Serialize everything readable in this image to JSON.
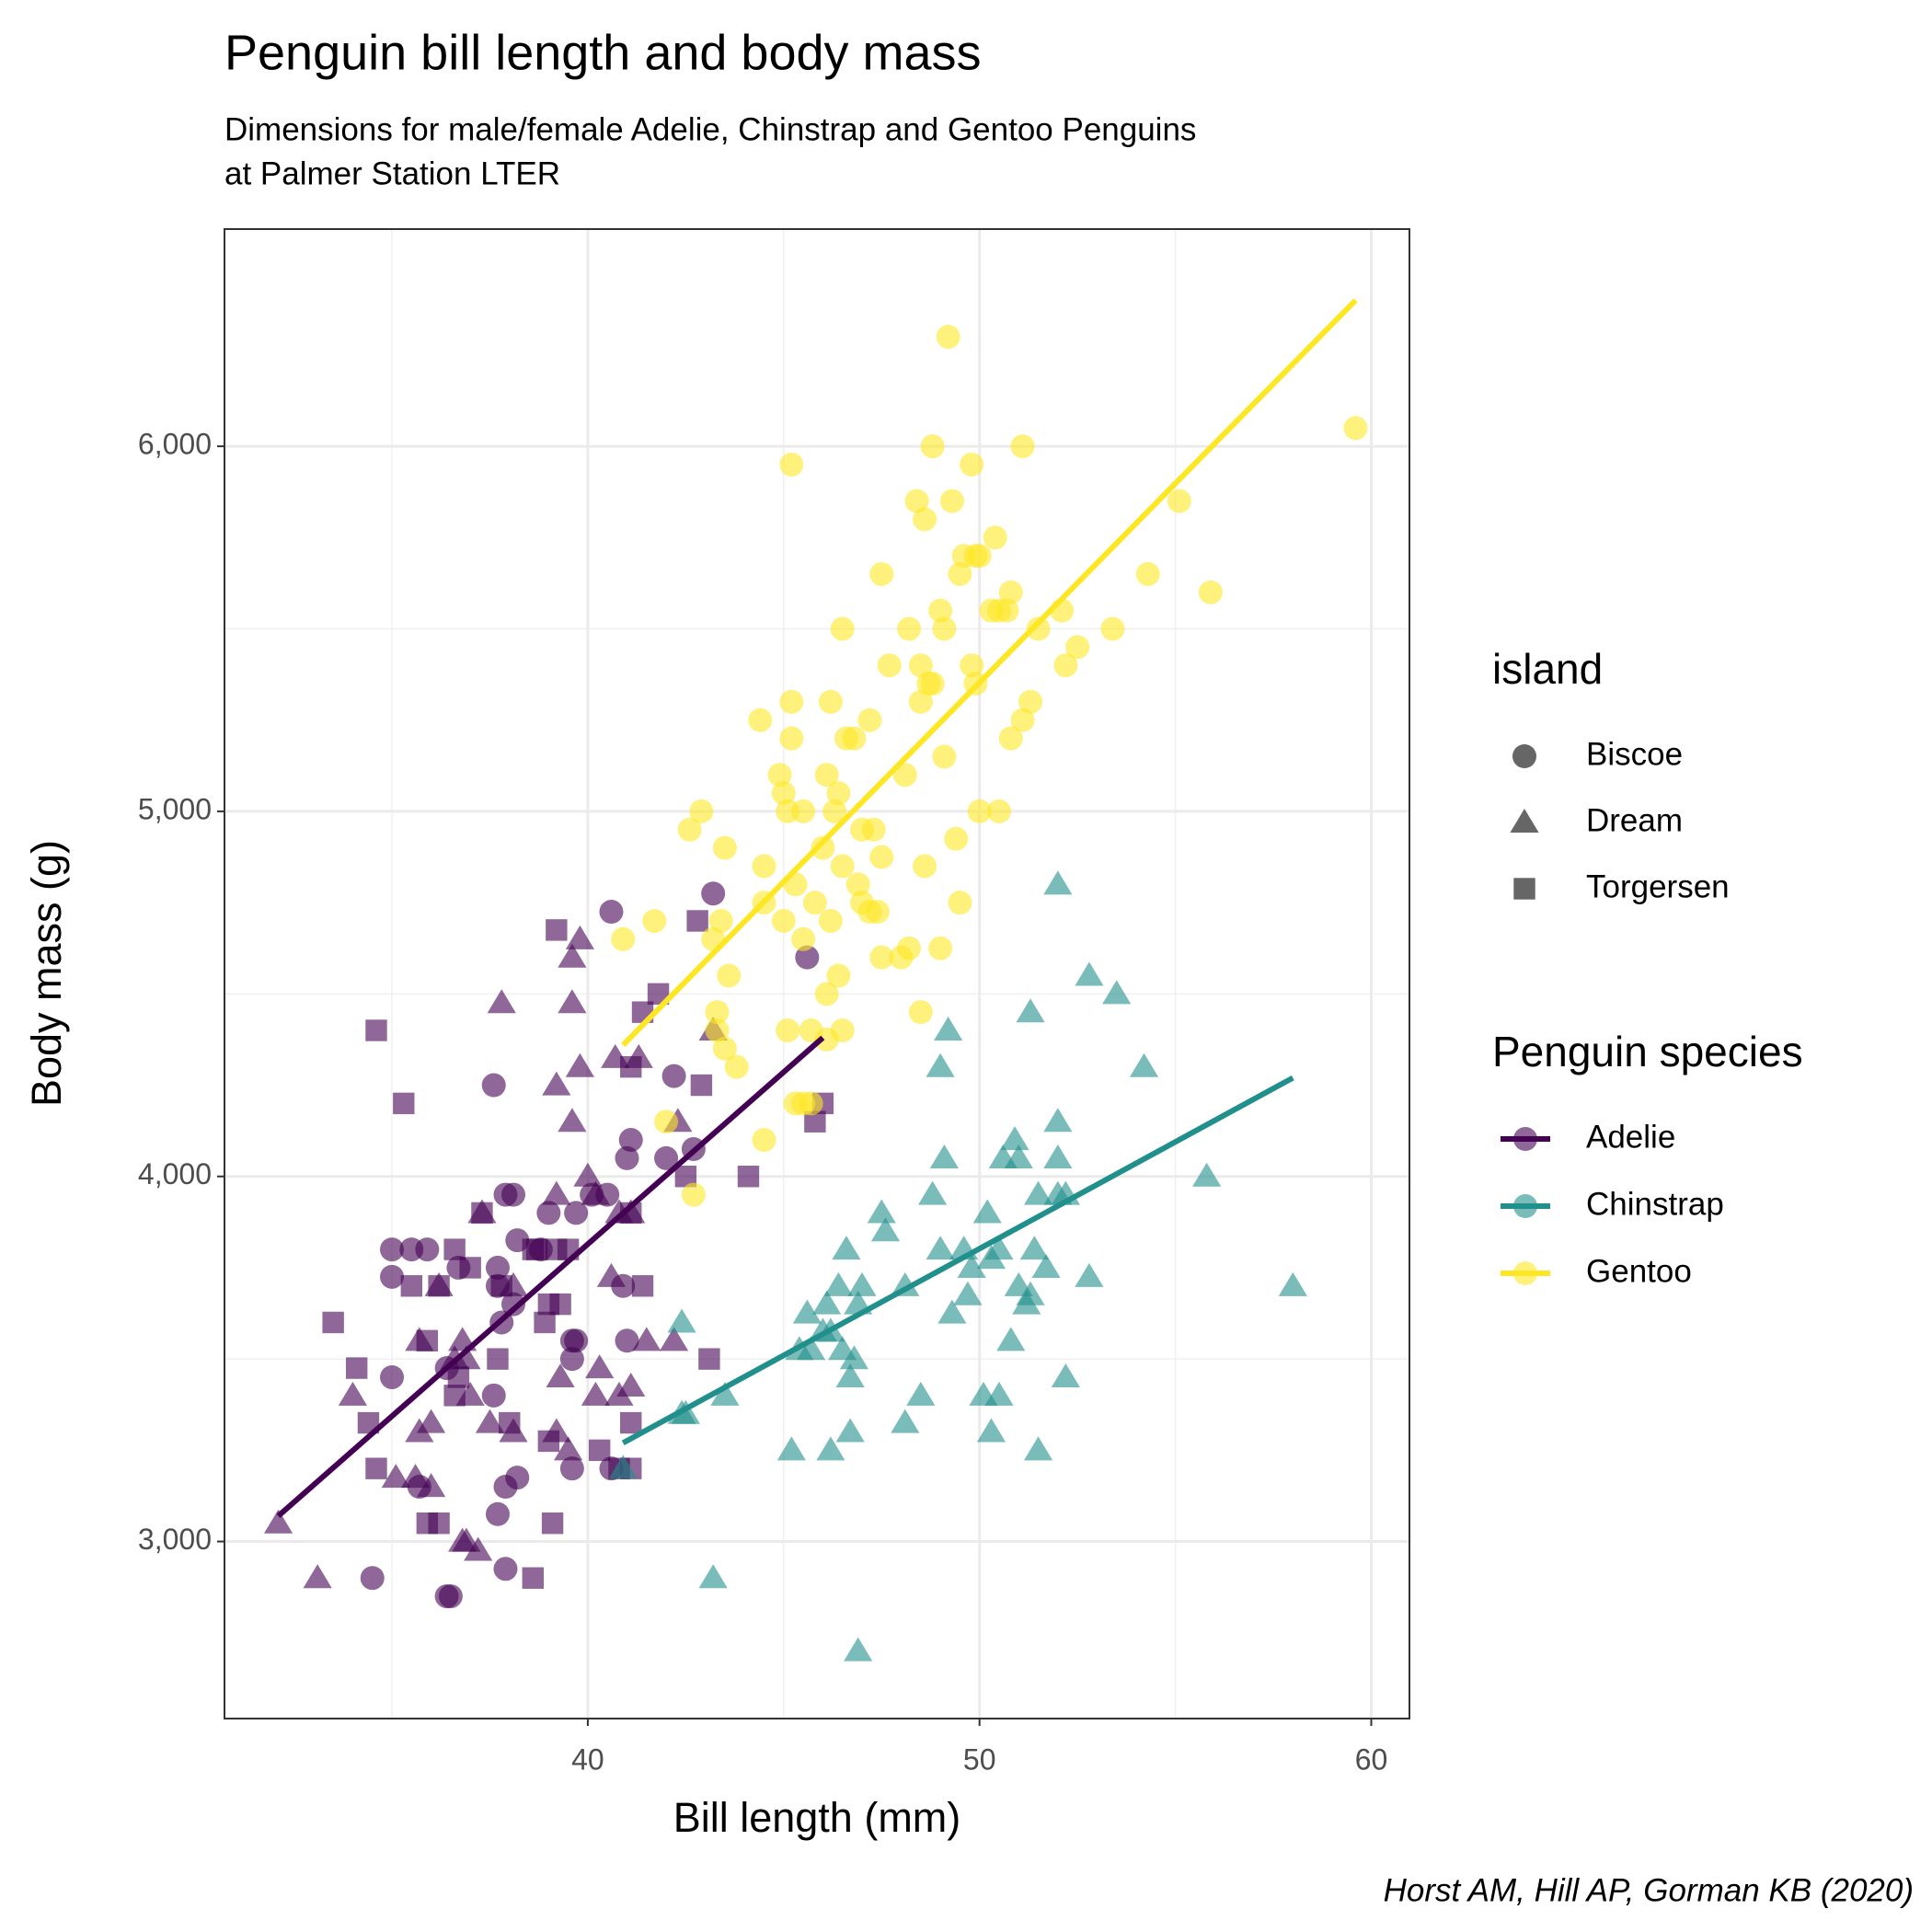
{
  "chart_data": {
    "type": "scatter",
    "title": "Penguin bill length and body mass",
    "subtitle": [
      "Dimensions for male/female Adelie, Chinstrap and Gentoo Penguins",
      "at Palmer Station LTER"
    ],
    "caption": "Horst AM, Hill AP, Gorman KB (2020)",
    "x_label": "Bill length (mm)",
    "y_label": "Body mass (g)",
    "xlim": [
      30.725,
      60.975
    ],
    "xticks": [
      40,
      50,
      60
    ],
    "xminor": [
      35,
      45,
      55
    ],
    "ylim": [
      2515,
      6595
    ],
    "yticks": [
      {
        "value": 3000,
        "label": "3,000"
      },
      {
        "value": 4000,
        "label": "4,000"
      },
      {
        "value": 5000,
        "label": "5,000"
      },
      {
        "value": 6000,
        "label": "6,000"
      }
    ],
    "yminor": [
      3500,
      4500,
      5500
    ],
    "grid": true,
    "shape_legend": {
      "title": "island",
      "items": [
        "Biscoe",
        "Dream",
        "Torgersen"
      ]
    },
    "color_legend_title": "Penguin species",
    "series": [
      {
        "name": "Adelie",
        "color": "#440154",
        "trend_x": [
          32.1,
          46.0
        ],
        "trend_y": [
          3070,
          4380
        ],
        "groups": [
          {
            "island": "Biscoe",
            "x": [
              40.6,
              43.2,
              45.6,
              37.6,
              42.2,
              41.1,
              41.0,
              42.0,
              42.7,
              39.7,
              39.0,
              37.9,
              38.1,
              40.5,
              40.1,
              35.0,
              35.5,
              35.9,
              38.2,
              36.7,
              37.7,
              38.8,
              35.0,
              37.7,
              39.6,
              39.7,
              41.0,
              37.8,
              38.1,
              36.4,
              35.0,
              39.6,
              37.6,
              35.7,
              39.6,
              40.6,
              38.2,
              37.9,
              37.7,
              37.9,
              36.5,
              36.4,
              34.5,
              40.9
            ],
            "values": [
              4725,
              4775,
              4600,
              4250,
              4275,
              4100,
              4050,
              4050,
              4075,
              3900,
              3900,
              3950,
              3950,
              3950,
              3950,
              3800,
              3800,
              3800,
              3825,
              3750,
              3750,
              3800,
              3725,
              3700,
              3550,
              3550,
              3550,
              3600,
              3650,
              3475,
              3450,
              3500,
              3400,
              3150,
              3200,
              3200,
              3175,
              3150,
              3075,
              2925,
              2850,
              2850,
              2900,
              3700
            ]
          },
          {
            "island": "Dream",
            "x": [
              32.1,
              33.1,
              36.8,
              37.2,
              36.9,
              34.0,
              35.7,
              36.0,
              35.6,
              36.0,
              35.1,
              37.5,
              38.1,
              39.2,
              39.5,
              40.2,
              40.8,
              41.1,
              41.5,
              42.2,
              40.3,
              37.0,
              36.6,
              36.8,
              35.7,
              36.2,
              37.3,
              39.2,
              40.8,
              41.1,
              40.2,
              40.0,
              39.8,
              40.7,
              41.3,
              39.6,
              39.6,
              39.8,
              37.8,
              43.2,
              39.2,
              39.6,
              42.3,
              36.9,
              39.3,
              38.1,
              40.6
            ],
            "values": [
              3050,
              2900,
              3000,
              2975,
              3000,
              3400,
              3300,
              3325,
              3175,
              3150,
              3175,
              3325,
              3300,
              3300,
              3250,
              3400,
              3400,
              3425,
              3550,
              3550,
              3475,
              3400,
              3500,
              3550,
              3550,
              3700,
              3900,
              3950,
              3900,
              3900,
              3950,
              4000,
              4300,
              4325,
              4325,
              4475,
              4600,
              4650,
              4475,
              4400,
              4250,
              4150,
              4150,
              3500,
              3450,
              3700,
              3725
            ]
          },
          {
            "island": "Torgersen",
            "x": [
              39.2,
              34.6,
              35.3,
              41.4,
              41.8,
              42.8,
              42.9,
              41.1,
              46.0,
              45.8,
              44.1,
              42.5,
              41.1,
              37.3,
              38.7,
              39.2,
              36.6,
              35.5,
              36.2,
              38.6,
              39.5,
              37.0,
              33.5,
              39.0,
              37.8,
              41.4,
              34.1,
              35.9,
              38.9,
              39.3,
              37.7,
              34.4,
              36.7,
              36.6,
              38.0,
              39.0,
              40.3,
              41.1,
              43.1,
              34.6,
              35.9,
              36.2,
              39.1,
              38.6,
              41.1,
              40.8
            ],
            "values": [
              4675,
              4400,
              4200,
              4450,
              4500,
              4700,
              4250,
              4300,
              4200,
              4150,
              4000,
              4000,
              3900,
              3900,
              3800,
              3800,
              3800,
              3700,
              3700,
              3800,
              3800,
              3750,
              3600,
              3650,
              3700,
              3700,
              3475,
              3550,
              3600,
              3650,
              3500,
              3325,
              3450,
              3400,
              3325,
              3275,
              3250,
              3325,
              3500,
              3200,
              3050,
              3050,
              3050,
              2900,
              3200,
              3200
            ]
          }
        ]
      },
      {
        "name": "Chinstrap",
        "color": "#21908C",
        "trend_x": [
          40.9,
          58.0
        ],
        "trend_y": [
          3270,
          4270
        ],
        "groups": [
          {
            "island": "Dream",
            "x": [
              52.0,
              53.5,
              52.8,
              54.2,
              51.3,
              49.2,
              49.0,
              55.8,
              58.0,
              52.0,
              52.0,
              50.9,
              51.0,
              50.6,
              49.1,
              48.8,
              51.5,
              52.2,
              52.0,
              47.5,
              50.2,
              47.6,
              49.6,
              50.5,
              51.4,
              51.7,
              49.0,
              49.8,
              50.3,
              46.6,
              48.1,
              49.7,
              51.0,
              51.2,
              51.3,
              52.8,
              47.0,
              46.9,
              46.4,
              46.1,
              45.6,
              46.2,
              45.7,
              46.5,
              45.4,
              46.0,
              46.8,
              46.7,
              50.8,
              49.3,
              42.4,
              43.5,
              42.5,
              42.4,
              48.5,
              50.1,
              50.5,
              52.2,
              48.1,
              45.2,
              46.2,
              46.7,
              50.3,
              51.5,
              43.2,
              46.9,
              40.9
            ],
            "values": [
              4800,
              4500,
              4550,
              4300,
              4450,
              4400,
              4300,
              4000,
              3700,
              4150,
              4050,
              4100,
              4050,
              4050,
              4050,
              3950,
              3950,
              3950,
              3950,
              3900,
              3900,
              3850,
              3800,
              3800,
              3800,
              3750,
              3800,
              3750,
              3775,
              3800,
              3700,
              3675,
              3700,
              3650,
              3675,
              3725,
              3700,
              3650,
              3700,
              3650,
              3625,
              3575,
              3525,
              3525,
              3525,
              3575,
              3500,
              3450,
              3550,
              3625,
              3600,
              3400,
              3350,
              3350,
              3400,
              3400,
              3400,
              3450,
              3325,
              3250,
              3250,
              3300,
              3300,
              3250,
              2900,
              2700,
              3200
            ]
          }
        ]
      },
      {
        "name": "Gentoo",
        "color": "#FDE725",
        "trend_x": [
          40.9,
          59.6
        ],
        "trend_y": [
          4360,
          6400
        ],
        "groups": [
          {
            "island": "Biscoe",
            "x": [
              49.2,
              59.6,
              45.2,
              48.8,
              49.8,
              51.1,
              55.1,
              48.4,
              49.3,
              48.6,
              49.9,
              49.6,
              50.0,
              50.4,
              49.5,
              47.5,
              54.3,
              55.9,
              50.8,
              50.5,
              50.7,
              50.3,
              49.0,
              52.1,
              51.5,
              53.4,
              46.5,
              48.2,
              49.1,
              52.5,
              47.7,
              48.5,
              49.8,
              52.2,
              48.7,
              48.8,
              49.9,
              51.3,
              45.2,
              46.2,
              48.5,
              51.1,
              44.4,
              47.2,
              46.6,
              46.8,
              50.8,
              45.2,
              44.9,
              46.1,
              48.1,
              49.1,
              45.0,
              46.4,
              46.3,
              45.1,
              45.5,
              42.9,
              50.0,
              50.5,
              42.6,
              47.0,
              47.3,
              49.4,
              43.5,
              46.0,
              46.5,
              47.5,
              48.6,
              44.5,
              45.3,
              46.9,
              47.0,
              44.5,
              45.8,
              49.5,
              47.2,
              47.4,
              45.0,
              46.2,
              41.7,
              43.4,
              43.2,
              40.9,
              45.5,
              47.5,
              48.0,
              48.2,
              49.0,
              46.4,
              43.6,
              46.1,
              48.5,
              43.3,
              43.3,
              45.1,
              45.7,
              46.5,
              46.1,
              43.8,
              43.5,
              45.5,
              45.3,
              45.7,
              42.0,
              44.5,
              42.7
            ],
            "values": [
              6300,
              6050,
              5950,
              6000,
              5950,
              6000,
              5850,
              5850,
              5850,
              5800,
              5700,
              5700,
              5700,
              5750,
              5650,
              5650,
              5650,
              5600,
              5600,
              5550,
              5550,
              5550,
              5550,
              5550,
              5500,
              5500,
              5500,
              5500,
              5500,
              5450,
              5400,
              5400,
              5400,
              5400,
              5350,
              5350,
              5350,
              5300,
              5300,
              5300,
              5300,
              5250,
              5250,
              5250,
              5200,
              5200,
              5200,
              5200,
              5100,
              5100,
              5100,
              5150,
              5050,
              5050,
              5000,
              5000,
              5000,
              5000,
              5000,
              5000,
              4950,
              4950,
              4950,
              4925,
              4900,
              4900,
              4850,
              4875,
              4850,
              4850,
              4800,
              4800,
              4750,
              4750,
              4750,
              4750,
              4725,
              4725,
              4700,
              4700,
              4700,
              4700,
              4650,
              4650,
              4650,
              4600,
              4600,
              4625,
              4625,
              4550,
              4550,
              4500,
              4450,
              4450,
              4400,
              4400,
              4400,
              4400,
              4375,
              4300,
              4350,
              4200,
              4200,
              4200,
              4150,
              4100,
              3950
            ]
          }
        ]
      }
    ]
  }
}
